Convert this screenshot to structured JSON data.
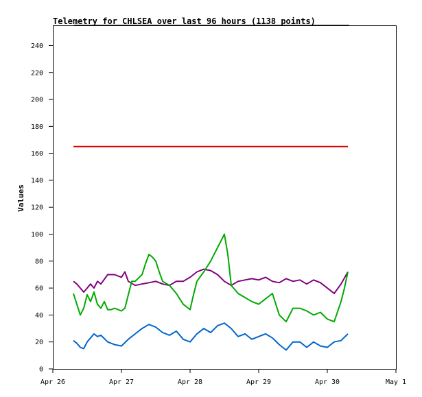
{
  "title": "Telemetry for CHLSEA over last 96 hours (1138 points)",
  "chart_data": {
    "type": "line",
    "title": "Telemetry for CHLSEA over last 96 hours (1138 points)",
    "xlabel": "",
    "ylabel": "Values",
    "ylim": [
      0,
      255
    ],
    "yticks": [
      0,
      20,
      40,
      60,
      80,
      100,
      120,
      140,
      160,
      180,
      200,
      220,
      240
    ],
    "xlim": [
      0,
      5
    ],
    "xticks": [
      {
        "x": 0,
        "label": "Apr 26"
      },
      {
        "x": 1,
        "label": "Apr 27"
      },
      {
        "x": 2,
        "label": "Apr 28"
      },
      {
        "x": 3,
        "label": "Apr 29"
      },
      {
        "x": 4,
        "label": "Apr 30"
      },
      {
        "x": 5,
        "label": "May 1"
      }
    ],
    "grid": false,
    "legend": "none",
    "series": [
      {
        "color": "#dd0000",
        "x": [
          0.3,
          4.3
        ],
        "y": [
          165,
          165
        ]
      },
      {
        "color": "#800080",
        "x": [
          0.3,
          0.35,
          0.4,
          0.45,
          0.5,
          0.55,
          0.6,
          0.65,
          0.7,
          0.8,
          0.9,
          1.0,
          1.05,
          1.1,
          1.2,
          1.3,
          1.4,
          1.5,
          1.6,
          1.7,
          1.8,
          1.9,
          2.0,
          2.1,
          2.2,
          2.3,
          2.4,
          2.5,
          2.6,
          2.7,
          2.8,
          2.9,
          3.0,
          3.1,
          3.2,
          3.3,
          3.4,
          3.5,
          3.6,
          3.7,
          3.8,
          3.9,
          4.0,
          4.1,
          4.2,
          4.3
        ],
        "y": [
          65,
          63,
          60,
          57,
          60,
          63,
          60,
          65,
          63,
          70,
          70,
          68,
          72,
          65,
          62,
          63,
          64,
          65,
          63,
          62,
          65,
          65,
          68,
          72,
          74,
          73,
          70,
          65,
          62,
          65,
          66,
          67,
          66,
          68,
          65,
          64,
          67,
          65,
          66,
          63,
          66,
          64,
          60,
          56,
          63,
          72
        ]
      },
      {
        "color": "#00aa00",
        "x": [
          0.3,
          0.35,
          0.4,
          0.45,
          0.5,
          0.55,
          0.6,
          0.65,
          0.7,
          0.75,
          0.8,
          0.85,
          0.9,
          1.0,
          1.05,
          1.1,
          1.15,
          1.2,
          1.3,
          1.35,
          1.4,
          1.45,
          1.5,
          1.55,
          1.6,
          1.7,
          1.8,
          1.9,
          2.0,
          2.05,
          2.1,
          2.2,
          2.3,
          2.4,
          2.45,
          2.5,
          2.55,
          2.6,
          2.7,
          2.8,
          2.9,
          3.0,
          3.1,
          3.2,
          3.3,
          3.4,
          3.5,
          3.6,
          3.7,
          3.8,
          3.9,
          4.0,
          4.1,
          4.2,
          4.25,
          4.3
        ],
        "y": [
          56,
          48,
          40,
          45,
          55,
          50,
          57,
          48,
          45,
          50,
          44,
          44,
          45,
          43,
          45,
          55,
          65,
          65,
          70,
          78,
          85,
          83,
          80,
          72,
          65,
          62,
          56,
          48,
          44,
          55,
          65,
          72,
          80,
          90,
          95,
          100,
          85,
          62,
          56,
          53,
          50,
          48,
          52,
          56,
          40,
          35,
          45,
          45,
          43,
          40,
          42,
          37,
          35,
          50,
          60,
          72
        ]
      },
      {
        "color": "#0066cc",
        "x": [
          0.3,
          0.35,
          0.4,
          0.45,
          0.5,
          0.55,
          0.6,
          0.65,
          0.7,
          0.8,
          0.9,
          1.0,
          1.1,
          1.2,
          1.3,
          1.4,
          1.5,
          1.6,
          1.7,
          1.8,
          1.9,
          2.0,
          2.1,
          2.2,
          2.3,
          2.4,
          2.5,
          2.6,
          2.7,
          2.8,
          2.9,
          3.0,
          3.1,
          3.2,
          3.3,
          3.4,
          3.5,
          3.6,
          3.7,
          3.8,
          3.9,
          4.0,
          4.1,
          4.2,
          4.3
        ],
        "y": [
          21,
          19,
          16,
          15,
          20,
          23,
          26,
          24,
          25,
          20,
          18,
          17,
          22,
          26,
          30,
          33,
          31,
          27,
          25,
          28,
          22,
          20,
          26,
          30,
          27,
          32,
          34,
          30,
          24,
          26,
          22,
          24,
          26,
          23,
          18,
          14,
          20,
          20,
          16,
          20,
          17,
          16,
          20,
          21,
          26
        ]
      }
    ]
  }
}
